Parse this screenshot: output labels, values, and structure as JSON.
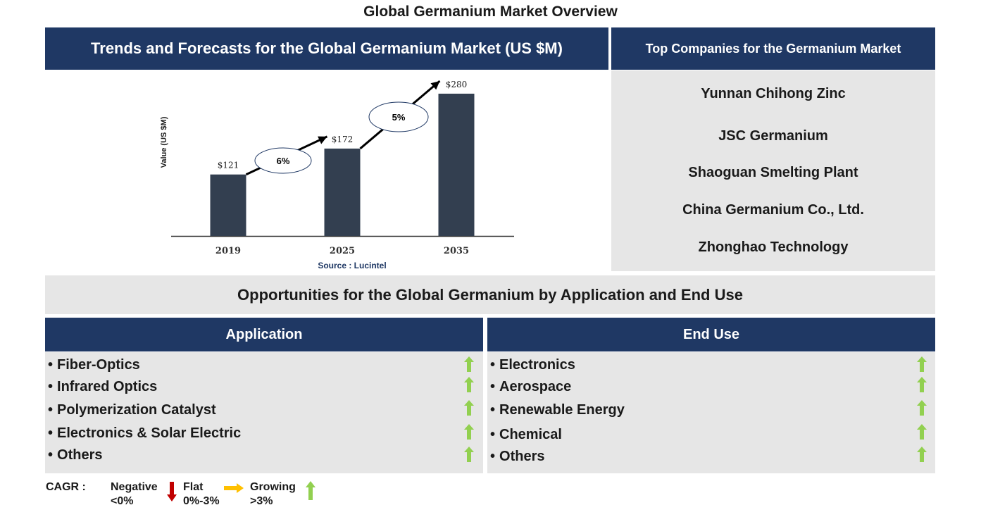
{
  "title": "Global Germanium Market Overview",
  "trends_header": "Trends and Forecasts for the Global Germanium Market (US $M)",
  "companies_header": "Top Companies for the Germanium Market",
  "companies": [
    "Yunnan Chihong Zinc",
    "JSC Germanium",
    "Shaoguan Smelting Plant",
    "China Germanium Co., Ltd.",
    "Zhonghao Technology"
  ],
  "opportunities_header": "Opportunities for the Global Germanium by Application and End Use",
  "application": {
    "header": "Application",
    "items": [
      "Fiber-Optics",
      "Infrared Optics",
      "Polymerization Catalyst",
      "Electronics & Solar Electric",
      "Others"
    ],
    "trend": "growing"
  },
  "end_use": {
    "header": "End Use",
    "items": [
      "Electronics",
      "Aerospace",
      "Renewable Energy",
      "Chemical",
      "Others"
    ],
    "trend": "growing"
  },
  "legend": {
    "cagr_label": "CAGR :",
    "negative_label": "Negative",
    "negative_range": "<0%",
    "flat_label": "Flat",
    "flat_range": "0%-3%",
    "growing_label": "Growing",
    "growing_range": ">3%",
    "colors": {
      "negative": "#c00000",
      "flat": "#ffc000",
      "growing": "#92d050"
    }
  },
  "chart_data": {
    "type": "bar",
    "categories": [
      "2019",
      "2025",
      "2035"
    ],
    "values": [
      121,
      172,
      280
    ],
    "value_labels": [
      "$121",
      "$172",
      "$280"
    ],
    "cagr_labels": [
      "6%",
      "5%"
    ],
    "ylabel": "Value (US $M)",
    "source": "Source : Lucintel",
    "bar_color": "#333f50"
  }
}
